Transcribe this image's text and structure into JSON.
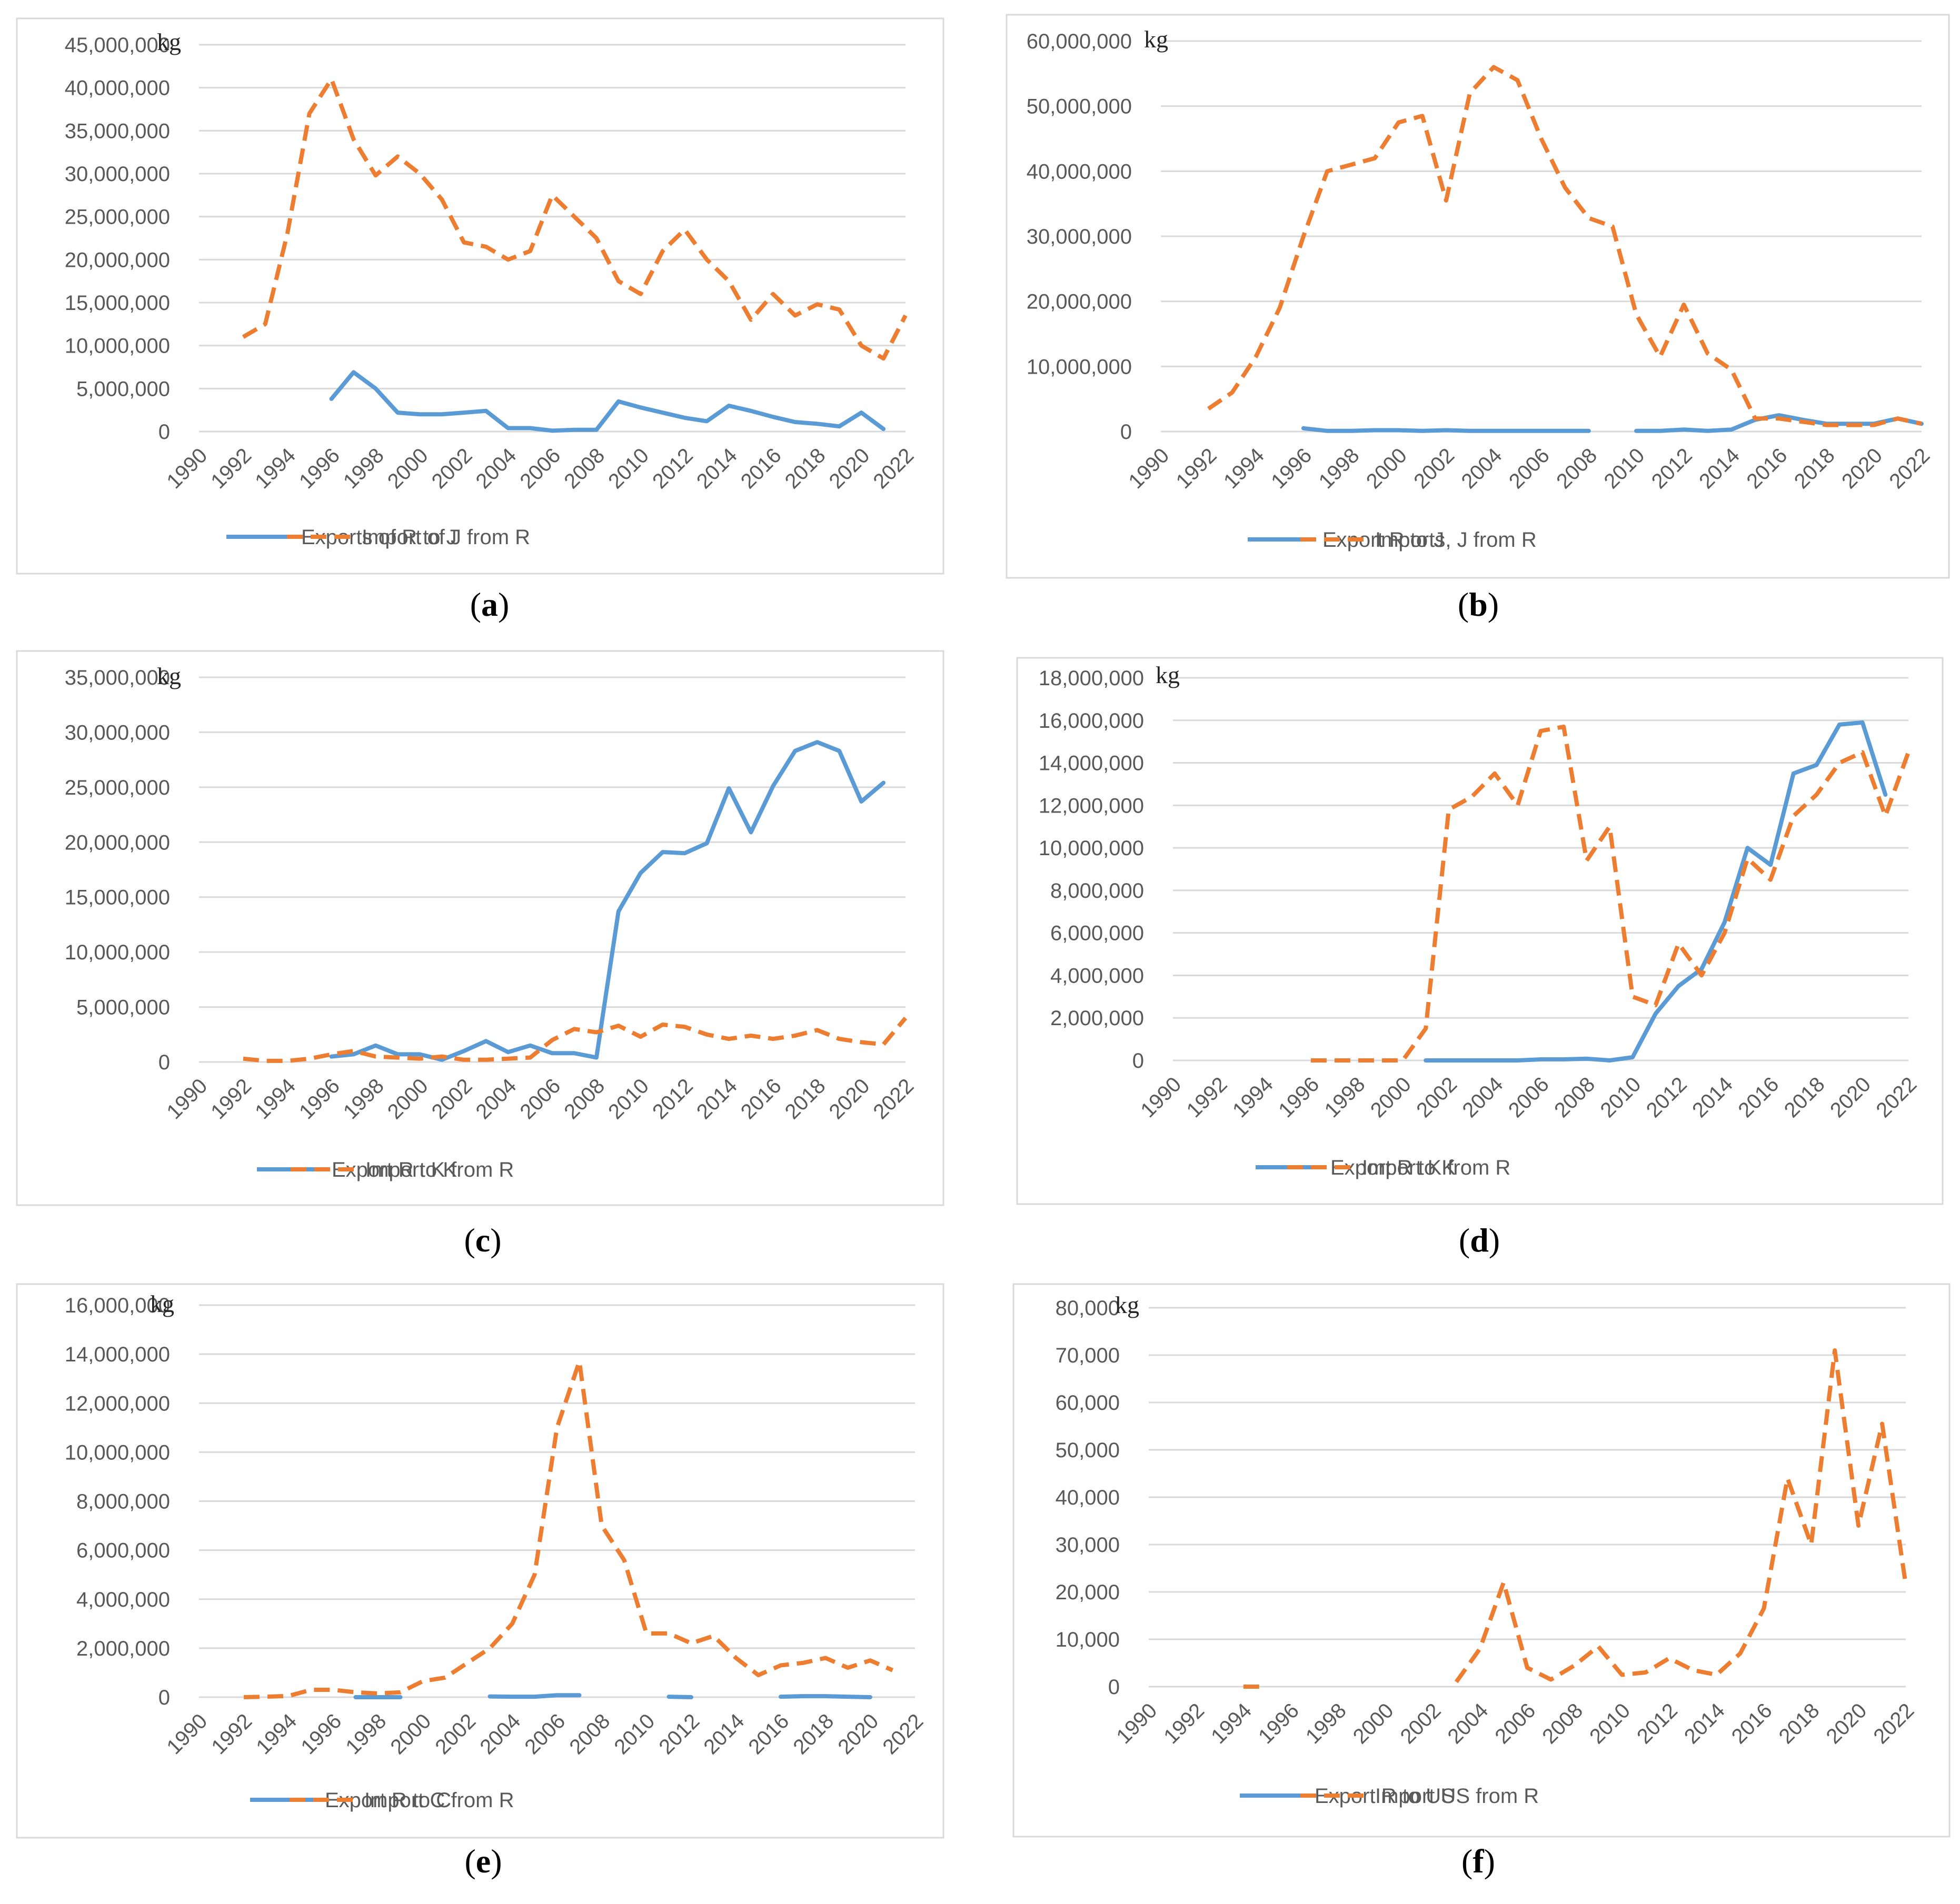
{
  "colors": {
    "export": "#5b9bd5",
    "import": "#ed7d31"
  },
  "chart_data": [
    {
      "id": "a",
      "type": "line",
      "caption": "a",
      "unit": "kg",
      "y_ticks": [
        "45,000,000",
        "40,000,000",
        "35,000,000",
        "30,000,000",
        "25,000,000",
        "20,000,000",
        "15,000,000",
        "10,000,000",
        "5,000,000",
        "0"
      ],
      "ylim": [
        0,
        45000000
      ],
      "x_ticks": [
        "1990",
        "1992",
        "1994",
        "1996",
        "1998",
        "2000",
        "2002",
        "2004",
        "2006",
        "2008",
        "2010",
        "2012",
        "2014",
        "2016",
        "2018",
        "2020",
        "2022"
      ],
      "xlim": [
        1990,
        2022
      ],
      "series": [
        {
          "name": "Exports of R to J",
          "style": "solid",
          "x": [
            1996,
            1997,
            1998,
            1999,
            2000,
            2001,
            2002,
            2003,
            2004,
            2005,
            2006,
            2007,
            2008,
            2009,
            2010,
            2011,
            2012,
            2013,
            2014,
            2015,
            2016,
            2017,
            2018,
            2019,
            2020,
            2021
          ],
          "values": [
            3800000,
            6900000,
            5000000,
            2200000,
            2000000,
            2000000,
            2200000,
            2400000,
            400000,
            400000,
            100000,
            200000,
            200000,
            3500000,
            2800000,
            2200000,
            1600000,
            1200000,
            3000000,
            2400000,
            1700000,
            1100000,
            900000,
            600000,
            2200000,
            300000
          ]
        },
        {
          "name": "Import of J from R",
          "style": "dashed",
          "x": [
            1992,
            1993,
            1994,
            1995,
            1996,
            1997,
            1998,
            1999,
            2000,
            2001,
            2002,
            2003,
            2004,
            2005,
            2006,
            2007,
            2008,
            2009,
            2010,
            2011,
            2012,
            2013,
            2014,
            2015,
            2016,
            2017,
            2018,
            2019,
            2020,
            2021,
            2022
          ],
          "values": [
            11000000,
            12500000,
            23000000,
            37000000,
            41000000,
            34000000,
            29800000,
            32000000,
            30000000,
            27000000,
            22000000,
            21500000,
            20000000,
            21000000,
            27500000,
            25000000,
            22500000,
            17500000,
            16000000,
            21000000,
            23500000,
            20000000,
            17500000,
            13000000,
            16000000,
            13500000,
            14800000,
            14200000,
            10000000,
            8500000,
            13500000
          ]
        }
      ]
    },
    {
      "id": "b",
      "type": "line",
      "caption": "b",
      "unit": "kg",
      "y_ticks": [
        "60,000,000",
        "50,000,000",
        "40,000,000",
        "30,000,000",
        "20,000,000",
        "10,000,000",
        "0"
      ],
      "ylim": [
        0,
        60000000
      ],
      "x_ticks": [
        "1990",
        "1992",
        "1994",
        "1996",
        "1998",
        "2000",
        "2002",
        "2004",
        "2006",
        "2008",
        "2010",
        "2012",
        "2014",
        "2016",
        "2018",
        "2020",
        "2022"
      ],
      "xlim": [
        1990,
        2022
      ],
      "series": [
        {
          "name": "Export R to J",
          "style": "solid",
          "segments": [
            {
              "x": [
                1996,
                1997,
                1998,
                1999,
                2000,
                2001,
                2002,
                2003,
                2004,
                2005,
                2006,
                2007,
                2008
              ],
              "values": [
                500000,
                100000,
                100000,
                200000,
                200000,
                100000,
                200000,
                100000,
                100000,
                100000,
                100000,
                100000,
                100000
              ]
            },
            {
              "x": [
                2010,
                2011,
                2012,
                2013,
                2014,
                2015,
                2016,
                2017,
                2018,
                2019,
                2020,
                2021,
                2022
              ],
              "values": [
                100000,
                100000,
                300000,
                100000,
                300000,
                1800000,
                2500000,
                1800000,
                1200000,
                1200000,
                1200000,
                2000000,
                1200000
              ]
            }
          ]
        },
        {
          "name": "Imports, J from R",
          "style": "dashed",
          "x": [
            1992,
            1993,
            1994,
            1995,
            1996,
            1997,
            1998,
            1999,
            2000,
            2001,
            2002,
            2003,
            2004,
            2005,
            2006,
            2007,
            2008,
            2009,
            2010,
            2011,
            2012,
            2013,
            2014,
            2015,
            2016,
            2017,
            2018,
            2019,
            2020,
            2021,
            2022
          ],
          "values": [
            3500000,
            6000000,
            11500000,
            19000000,
            30000000,
            40000000,
            41000000,
            42000000,
            47500000,
            48500000,
            35500000,
            52000000,
            56000000,
            54000000,
            45000000,
            37500000,
            32800000,
            31500000,
            18000000,
            11500000,
            19500000,
            12000000,
            9500000,
            2000000,
            2000000,
            1500000,
            1000000,
            1000000,
            1000000,
            2000000,
            1200000
          ]
        }
      ]
    },
    {
      "id": "c",
      "type": "line",
      "caption": "c",
      "unit": "kg",
      "y_ticks": [
        "35,000,000",
        "30,000,000",
        "25,000,000",
        "20,000,000",
        "15,000,000",
        "10,000,000",
        "5,000,000",
        "0"
      ],
      "ylim": [
        0,
        35000000
      ],
      "x_ticks": [
        "1990",
        "1992",
        "1994",
        "1996",
        "1998",
        "2000",
        "2002",
        "2004",
        "2006",
        "2008",
        "2010",
        "2012",
        "2014",
        "2016",
        "2018",
        "2020",
        "2022"
      ],
      "xlim": [
        1990,
        2022
      ],
      "series": [
        {
          "name": "Export R to K",
          "style": "solid",
          "x": [
            1996,
            1997,
            1998,
            1999,
            2000,
            2001,
            2002,
            2003,
            2004,
            2005,
            2006,
            2007,
            2008,
            2009,
            2010,
            2011,
            2012,
            2013,
            2014,
            2015,
            2016,
            2017,
            2018,
            2019,
            2020,
            2021
          ],
          "values": [
            500000,
            700000,
            1500000,
            700000,
            700000,
            200000,
            1000000,
            1900000,
            900000,
            1500000,
            800000,
            800000,
            400000,
            13700000,
            17200000,
            19100000,
            19000000,
            19900000,
            24900000,
            20900000,
            25100000,
            28300000,
            29100000,
            28300000,
            23700000,
            25400000
          ]
        },
        {
          "name": "Import K from R",
          "style": "dashed",
          "x": [
            1992,
            1993,
            1994,
            1995,
            1996,
            1997,
            1998,
            1999,
            2000,
            2001,
            2002,
            2003,
            2004,
            2005,
            2006,
            2007,
            2008,
            2009,
            2010,
            2011,
            2012,
            2013,
            2014,
            2015,
            2016,
            2017,
            2018,
            2019,
            2020,
            2021,
            2022
          ],
          "values": [
            300000,
            100000,
            100000,
            300000,
            700000,
            1000000,
            500000,
            400000,
            300000,
            500000,
            200000,
            200000,
            300000,
            400000,
            2000000,
            3000000,
            2700000,
            3300000,
            2300000,
            3400000,
            3200000,
            2500000,
            2100000,
            2400000,
            2100000,
            2400000,
            2900000,
            2100000,
            1800000,
            1600000,
            4000000
          ]
        }
      ]
    },
    {
      "id": "d",
      "type": "line",
      "caption": "d",
      "unit": "kg",
      "y_ticks": [
        "18,000,000",
        "16,000,000",
        "14,000,000",
        "12,000,000",
        "10,000,000",
        "8,000,000",
        "6,000,000",
        "4,000,000",
        "2,000,000",
        "0"
      ],
      "ylim": [
        0,
        18000000
      ],
      "x_ticks": [
        "1990",
        "1992",
        "1994",
        "1996",
        "1998",
        "2000",
        "2002",
        "2004",
        "2006",
        "2008",
        "2010",
        "2012",
        "2014",
        "2016",
        "2018",
        "2020",
        "2022"
      ],
      "xlim": [
        1990,
        2022
      ],
      "series": [
        {
          "name": "Export R to K",
          "style": "solid",
          "x": [
            2001,
            2002,
            2003,
            2004,
            2005,
            2006,
            2007,
            2008,
            2009,
            2010,
            2011,
            2012,
            2013,
            2014,
            2015,
            2016,
            2017,
            2018,
            2019,
            2020,
            2021
          ],
          "values": [
            0,
            0,
            0,
            0,
            0,
            50000,
            50000,
            80000,
            0,
            150000,
            2200000,
            3500000,
            4300000,
            6500000,
            10000000,
            9200000,
            13500000,
            13900000,
            15800000,
            15900000,
            12500000
          ]
        },
        {
          "name": "Import K from R",
          "style": "dashed",
          "x": [
            1996,
            1997,
            1998,
            1999,
            2000,
            2001,
            2002,
            2003,
            2004,
            2005,
            2006,
            2007,
            2008,
            2009,
            2010,
            2011,
            2012,
            2013,
            2014,
            2015,
            2016,
            2017,
            2018,
            2019,
            2020,
            2021,
            2022
          ],
          "values": [
            0,
            0,
            0,
            0,
            0,
            1500000,
            11800000,
            12400000,
            13500000,
            12000000,
            15500000,
            15700000,
            9400000,
            11000000,
            3000000,
            2600000,
            5500000,
            4000000,
            6000000,
            9500000,
            8500000,
            11500000,
            12500000,
            14000000,
            14500000,
            11500000,
            14500000
          ]
        }
      ]
    },
    {
      "id": "e",
      "type": "line",
      "caption": "e",
      "unit": "kg",
      "y_ticks": [
        "16,000,000",
        "14,000,000",
        "12,000,000",
        "10,000,000",
        "8,000,000",
        "6,000,000",
        "4,000,000",
        "2,000,000",
        "0"
      ],
      "ylim": [
        0,
        16000000
      ],
      "x_ticks": [
        "1990",
        "1992",
        "1994",
        "1996",
        "1998",
        "2000",
        "2002",
        "2004",
        "2006",
        "2008",
        "2010",
        "2012",
        "2014",
        "2016",
        "2018",
        "2020",
        "2022"
      ],
      "xlim": [
        1990,
        2022
      ],
      "series": [
        {
          "name": "Export R to C",
          "style": "solid",
          "segments": [
            {
              "x": [
                1997,
                1998,
                1999
              ],
              "values": [
                0,
                0,
                0
              ]
            },
            {
              "x": [
                2003,
                2004,
                2005,
                2006,
                2007
              ],
              "values": [
                30000,
                20000,
                20000,
                80000,
                80000
              ]
            },
            {
              "x": [
                2011,
                2012
              ],
              "values": [
                20000,
                0
              ]
            },
            {
              "x": [
                2016,
                2017,
                2018,
                2019,
                2020
              ],
              "values": [
                20000,
                40000,
                40000,
                20000,
                0
              ]
            }
          ]
        },
        {
          "name": "Import C from R",
          "style": "dashed",
          "x": [
            1992,
            1993,
            1994,
            1995,
            1996,
            1997,
            1998,
            1999,
            2000,
            2001,
            2002,
            2003,
            2004,
            2005,
            2006,
            2007,
            2008,
            2009,
            2010,
            2011,
            2012,
            2013,
            2014,
            2015,
            2016,
            2017,
            2018,
            2019,
            2020,
            2021
          ],
          "values": [
            0,
            20000,
            50000,
            300000,
            300000,
            200000,
            150000,
            200000,
            650000,
            800000,
            1400000,
            2000000,
            3000000,
            5000000,
            11000000,
            13700000,
            7000000,
            5600000,
            2600000,
            2600000,
            2200000,
            2500000,
            1600000,
            900000,
            1300000,
            1400000,
            1600000,
            1200000,
            1500000,
            1100000
          ]
        }
      ]
    },
    {
      "id": "f",
      "type": "line",
      "caption": "f",
      "unit": "kg",
      "y_ticks": [
        "80,000",
        "70,000",
        "60,000",
        "50,000",
        "40,000",
        "30,000",
        "20,000",
        "10,000",
        "0"
      ],
      "ylim": [
        0,
        80000
      ],
      "x_ticks": [
        "1990",
        "1992",
        "1994",
        "1996",
        "1998",
        "2000",
        "2002",
        "2004",
        "2006",
        "2008",
        "2010",
        "2012",
        "2014",
        "2016",
        "2018",
        "2020",
        "2022"
      ],
      "xlim": [
        1990,
        2022
      ],
      "series": [
        {
          "name": "Export R to US",
          "style": "solid",
          "x": [],
          "values": []
        },
        {
          "name": "Import US from R",
          "style": "dashed",
          "segments": [
            {
              "x": [
                1994,
                1995
              ],
              "values": [
                0,
                0
              ]
            },
            {
              "x": [
                2003,
                2004,
                2005,
                2006,
                2007,
                2008,
                2009,
                2010,
                2011,
                2012,
                2013,
                2014,
                2015,
                2016,
                2017,
                2018,
                2019,
                2020,
                2021,
                2022
              ],
              "values": [
                1000,
                8000,
                22000,
                4000,
                1500,
                4500,
                8500,
                2500,
                3000,
                6000,
                3500,
                2500,
                7000,
                16500,
                44000,
                30000,
                71000,
                34000,
                55500,
                21500
              ]
            }
          ]
        }
      ]
    }
  ]
}
